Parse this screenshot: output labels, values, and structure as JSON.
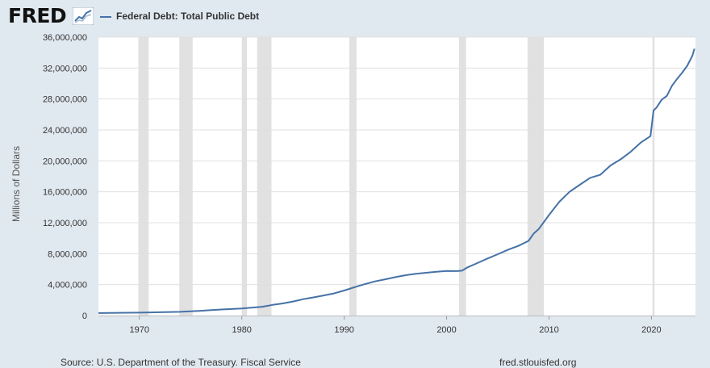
{
  "header": {
    "logo_text": "FRED",
    "logo_icon": "graph-line-icon",
    "legend_label": "Federal Debt: Total Public Debt",
    "legend_color": "#4572a7"
  },
  "footer": {
    "source": "Source: U.S. Department of the Treasury. Fiscal Service",
    "site": "fred.stlouisfed.org"
  },
  "chart_data": {
    "type": "line",
    "title": "",
    "xlabel": "",
    "ylabel": "Millions of Dollars",
    "xlim": [
      1966.0,
      2024.3
    ],
    "ylim": [
      0,
      36000000
    ],
    "grid": true,
    "legend": "top-left",
    "colors": {
      "line": "#4572a7",
      "recession": "#e1e1e1",
      "plot_bg": "#ffffff",
      "grid": "#e0e0e0"
    },
    "x_ticks": [
      {
        "value": 1970,
        "label": "1970"
      },
      {
        "value": 1980,
        "label": "1980"
      },
      {
        "value": 1990,
        "label": "1990"
      },
      {
        "value": 2000,
        "label": "2000"
      },
      {
        "value": 2010,
        "label": "2010"
      },
      {
        "value": 2020,
        "label": "2020"
      }
    ],
    "y_ticks": [
      {
        "value": 0,
        "label": "0"
      },
      {
        "value": 4000000,
        "label": "4,000,000"
      },
      {
        "value": 8000000,
        "label": "8,000,000"
      },
      {
        "value": 12000000,
        "label": "12,000,000"
      },
      {
        "value": 16000000,
        "label": "16,000,000"
      },
      {
        "value": 20000000,
        "label": "20,000,000"
      },
      {
        "value": 24000000,
        "label": "24,000,000"
      },
      {
        "value": 28000000,
        "label": "28,000,000"
      },
      {
        "value": 32000000,
        "label": "32,000,000"
      },
      {
        "value": 36000000,
        "label": "36,000,000"
      }
    ],
    "recessions": [
      [
        1969.9,
        1970.9
      ],
      [
        1973.9,
        1975.2
      ],
      [
        1980.0,
        1980.5
      ],
      [
        1981.5,
        1982.9
      ],
      [
        1990.5,
        1991.2
      ],
      [
        2001.2,
        2001.9
      ],
      [
        2007.9,
        2009.5
      ],
      [
        2020.1,
        2020.3
      ]
    ],
    "series": [
      {
        "name": "Federal Debt: Total Public Debt",
        "x": [
          1966.0,
          1968.0,
          1970.0,
          1972.0,
          1974.0,
          1976.0,
          1978.0,
          1980.0,
          1982.0,
          1983.0,
          1984.0,
          1985.0,
          1986.0,
          1987.0,
          1988.0,
          1989.0,
          1990.0,
          1991.0,
          1992.0,
          1993.0,
          1994.0,
          1995.0,
          1996.0,
          1997.0,
          1998.0,
          1999.0,
          2000.0,
          2001.0,
          2001.5,
          2002.0,
          2003.0,
          2004.0,
          2005.0,
          2006.0,
          2007.0,
          2008.0,
          2008.5,
          2009.0,
          2010.0,
          2011.0,
          2012.0,
          2013.0,
          2014.0,
          2015.0,
          2016.0,
          2017.0,
          2018.0,
          2019.0,
          2019.9,
          2020.2,
          2020.5,
          2021.0,
          2021.5,
          2022.0,
          2022.5,
          2023.0,
          2023.5,
          2024.0,
          2024.2
        ],
        "values": [
          320000,
          350000,
          380000,
          430000,
          480000,
          620000,
          780000,
          910000,
          1140000,
          1380000,
          1570000,
          1820000,
          2120000,
          2350000,
          2600000,
          2860000,
          3230000,
          3660000,
          4060000,
          4410000,
          4690000,
          4970000,
          5220000,
          5410000,
          5530000,
          5660000,
          5770000,
          5750000,
          5800000,
          6200000,
          6780000,
          7380000,
          7930000,
          8510000,
          9010000,
          9650000,
          10600000,
          11200000,
          13000000,
          14700000,
          16000000,
          16900000,
          17800000,
          18200000,
          19400000,
          20200000,
          21200000,
          22400000,
          23200000,
          26500000,
          26900000,
          27900000,
          28400000,
          29700000,
          30600000,
          31400000,
          32300000,
          33600000,
          34500000
        ]
      }
    ]
  }
}
